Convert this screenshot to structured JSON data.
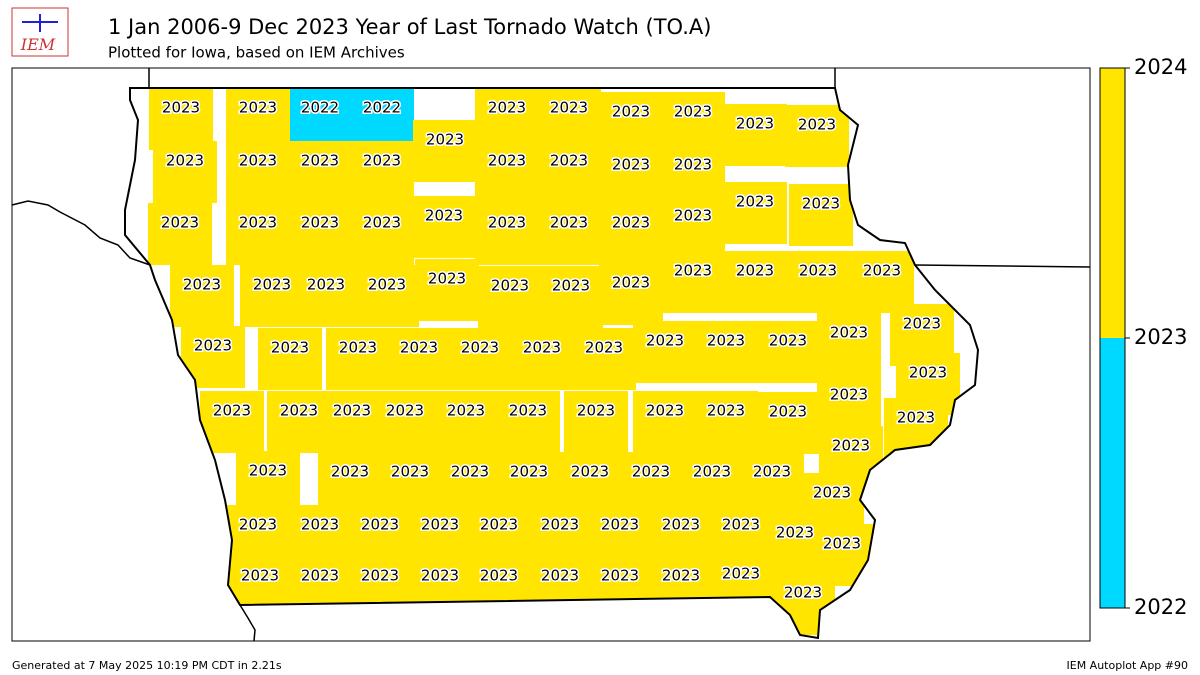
{
  "header": {
    "logo": "IEM",
    "title": "1 Jan 2006-9 Dec 2023 Year of Last Tornado Watch (TO.A)",
    "subtitle": "Plotted for Iowa, based on IEM Archives"
  },
  "counties": {
    "values": [
      2023,
      2023,
      2022,
      2022,
      2023,
      2023,
      2023,
      2023,
      2023,
      2023,
      2023,
      2023,
      2023,
      2023,
      2023,
      2023,
      2023,
      2023,
      2023,
      2023,
      2023,
      2023,
      2023,
      2023,
      2023,
      2023,
      2023,
      2023,
      2023,
      2023,
      2023,
      2023,
      2023,
      2023,
      2023,
      2023,
      2023,
      2023,
      2023,
      2023,
      2023,
      2023,
      2023,
      2023,
      2023,
      2023,
      2023,
      2023,
      2023,
      2023,
      2023,
      2023,
      2023,
      2023,
      2023,
      2023,
      2023,
      2023,
      2023,
      2023,
      2023,
      2023,
      2023,
      2023,
      2023,
      2023,
      2023,
      2023,
      2023,
      2023,
      2023,
      2023,
      2023,
      2023,
      2023,
      2023,
      2023,
      2023,
      2023,
      2023,
      2023,
      2023,
      2023,
      2023,
      2023,
      2023,
      2023,
      2023,
      2023,
      2023,
      2023,
      2023,
      2023,
      2023,
      2023,
      2023,
      2023,
      2023,
      2023
    ]
  },
  "colorbar": {
    "bins": [
      2022,
      2023,
      2024
    ],
    "colors": [
      "#00d9ff",
      "#ffe500"
    ],
    "ticks": [
      2022,
      2023,
      2024
    ]
  },
  "footer": {
    "left": "Generated at 7 May 2025 10:19 PM CDT in 2.21s",
    "right": "IEM Autoplot App #90"
  }
}
